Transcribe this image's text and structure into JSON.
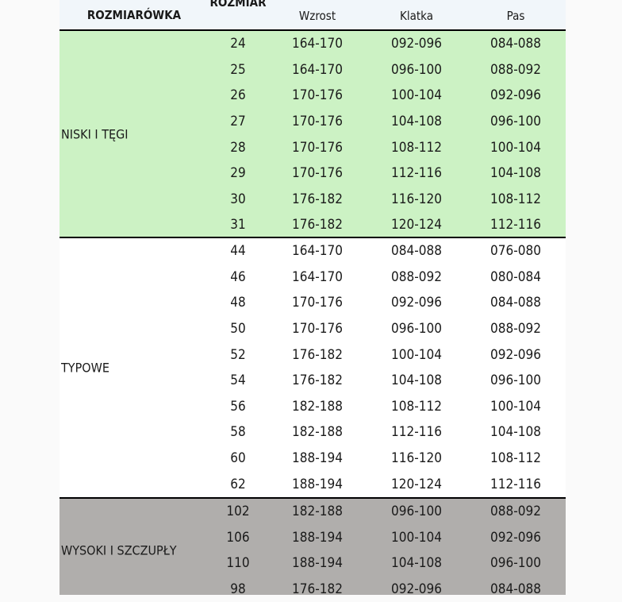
{
  "header": {
    "col0": "ROZMIARÓWKA",
    "col1": "ROZMIAR",
    "col2": "Wzrost",
    "col3": "Klatka",
    "col4": "Pas"
  },
  "colors": {
    "header_bg": "#f1f6fa",
    "niski_bg": "#ccf2c4",
    "typowe_bg": "#ffffff",
    "wysoki_bg": "#b0aeac"
  },
  "sections": [
    {
      "label": "NISKI I TĘGI",
      "rows": [
        [
          "24",
          "164-170",
          "092-096",
          "084-088"
        ],
        [
          "25",
          "164-170",
          "096-100",
          "088-092"
        ],
        [
          "26",
          "170-176",
          "100-104",
          "092-096"
        ],
        [
          "27",
          "170-176",
          "104-108",
          "096-100"
        ],
        [
          "28",
          "170-176",
          "108-112",
          "100-104"
        ],
        [
          "29",
          "170-176",
          "112-116",
          "104-108"
        ],
        [
          "30",
          "176-182",
          "116-120",
          "108-112"
        ],
        [
          "31",
          "176-182",
          "120-124",
          "112-116"
        ]
      ]
    },
    {
      "label": "TYPOWE",
      "rows": [
        [
          "44",
          "164-170",
          "084-088",
          "076-080"
        ],
        [
          "46",
          "164-170",
          "088-092",
          "080-084"
        ],
        [
          "48",
          "170-176",
          "092-096",
          "084-088"
        ],
        [
          "50",
          "170-176",
          "096-100",
          "088-092"
        ],
        [
          "52",
          "176-182",
          "100-104",
          "092-096"
        ],
        [
          "54",
          "176-182",
          "104-108",
          "096-100"
        ],
        [
          "56",
          "182-188",
          "108-112",
          "100-104"
        ],
        [
          "58",
          "182-188",
          "112-116",
          "104-108"
        ],
        [
          "60",
          "188-194",
          "116-120",
          "108-112"
        ],
        [
          "62",
          "188-194",
          "120-124",
          "112-116"
        ]
      ]
    },
    {
      "label": "WYSOKI I SZCZUPŁY",
      "rows": [
        [
          "102",
          "182-188",
          "096-100",
          "088-092"
        ],
        [
          "106",
          "188-194",
          "100-104",
          "092-096"
        ],
        [
          "110",
          "188-194",
          "104-108",
          "096-100"
        ],
        [
          "98",
          "176-182",
          "092-096",
          "084-088"
        ]
      ]
    }
  ]
}
